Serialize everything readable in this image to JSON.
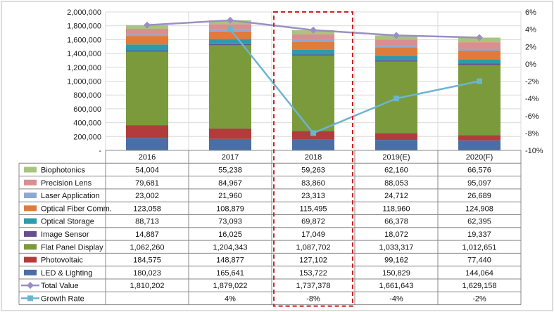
{
  "chart_data": {
    "type": "bar",
    "stacked": true,
    "categories": [
      "2016",
      "2017",
      "2018",
      "2019(E)",
      "2020(F)"
    ],
    "bar_series": [
      {
        "name": "LED & Lighting",
        "color": "#4a6fa5",
        "values": [
          180023,
          165641,
          153722,
          150829,
          144064
        ]
      },
      {
        "name": "Photovoltaic",
        "color": "#b23c3c",
        "values": [
          184575,
          148877,
          127102,
          99162,
          77440
        ]
      },
      {
        "name": "Flat Panel Display",
        "color": "#7a9a3c",
        "values": [
          1062260,
          1204343,
          1087702,
          1033317,
          1012651
        ]
      },
      {
        "name": "Image Sensor",
        "color": "#6a4c93",
        "values": [
          14887,
          16025,
          17049,
          18072,
          19337
        ]
      },
      {
        "name": "Optical Storage",
        "color": "#2f9aab",
        "values": [
          88713,
          73093,
          69872,
          66378,
          62395
        ]
      },
      {
        "name": "Optical Fiber Comm.",
        "color": "#e07b39",
        "values": [
          123058,
          108879,
          115495,
          118960,
          124908
        ]
      },
      {
        "name": "Laser Application",
        "color": "#8fa8d0",
        "values": [
          23002,
          21960,
          23313,
          24712,
          26689
        ]
      },
      {
        "name": "Precision Lens",
        "color": "#d98f8f",
        "values": [
          79681,
          84967,
          83860,
          88053,
          95097
        ]
      },
      {
        "name": "Biophotonics",
        "color": "#a9c47f",
        "values": [
          54004,
          55238,
          59263,
          62160,
          66576
        ]
      }
    ],
    "line_series": [
      {
        "name": "Total Value",
        "color": "#9b8fc2",
        "axis": "left",
        "values": [
          1810202,
          1879022,
          1737378,
          1661643,
          1629158
        ]
      },
      {
        "name": "Growth Rate",
        "color": "#6db4cf",
        "axis": "right",
        "values": [
          null,
          4,
          -8,
          -4,
          -2
        ]
      }
    ],
    "y_left": {
      "min": 0,
      "max": 2000000,
      "step": 200000,
      "ticks": [
        "-",
        "200,000",
        "400,000",
        "600,000",
        "800,000",
        "1,000,000",
        "1,200,000",
        "1,400,000",
        "1,600,000",
        "1,800,000",
        "2,000,000"
      ]
    },
    "y_right": {
      "min": -10,
      "max": 6,
      "step": 2,
      "ticks": [
        "-10%",
        "-8%",
        "-6%",
        "-4%",
        "-2%",
        "0%",
        "2%",
        "4%",
        "6%"
      ]
    },
    "table_rows": [
      {
        "label": "Biophotonics",
        "cells": [
          "54,004",
          "55,238",
          "59,263",
          "62,160",
          "66,576"
        ]
      },
      {
        "label": "Precision Lens",
        "cells": [
          "79,681",
          "84,967",
          "83,860",
          "88,053",
          "95,097"
        ]
      },
      {
        "label": "Laser Application",
        "cells": [
          "23,002",
          "21,960",
          "23,313",
          "24,712",
          "26,689"
        ]
      },
      {
        "label": "Optical Fiber Comm.",
        "cells": [
          "123,058",
          "108,879",
          "115,495",
          "118,960",
          "124,908"
        ]
      },
      {
        "label": "Optical Storage",
        "cells": [
          "88,713",
          "73,093",
          "69,872",
          "66,378",
          "62,395"
        ]
      },
      {
        "label": "Image Sensor",
        "cells": [
          "14,887",
          "16,025",
          "17,049",
          "18,072",
          "19,337"
        ]
      },
      {
        "label": "Flat Panel Display",
        "cells": [
          "1,062,260",
          "1,204,343",
          "1,087,702",
          "1,033,317",
          "1,012,651"
        ]
      },
      {
        "label": "Photovoltaic",
        "cells": [
          "184,575",
          "148,877",
          "127,102",
          "99,162",
          "77,440"
        ]
      },
      {
        "label": "LED & Lighting",
        "cells": [
          "180,023",
          "165,641",
          "153,722",
          "150,829",
          "144,064"
        ]
      },
      {
        "label": "Total Value",
        "cells": [
          "1,810,202",
          "1,879,022",
          "1,737,378",
          "1,661,643",
          "1,629,158"
        ]
      },
      {
        "label": "Growth Rate",
        "cells": [
          "",
          "4%",
          "-8%",
          "-4%",
          "-2%"
        ]
      }
    ],
    "highlight_category": "2018",
    "highlight_color": "#cc2222",
    "grid": true,
    "legend": "table"
  }
}
